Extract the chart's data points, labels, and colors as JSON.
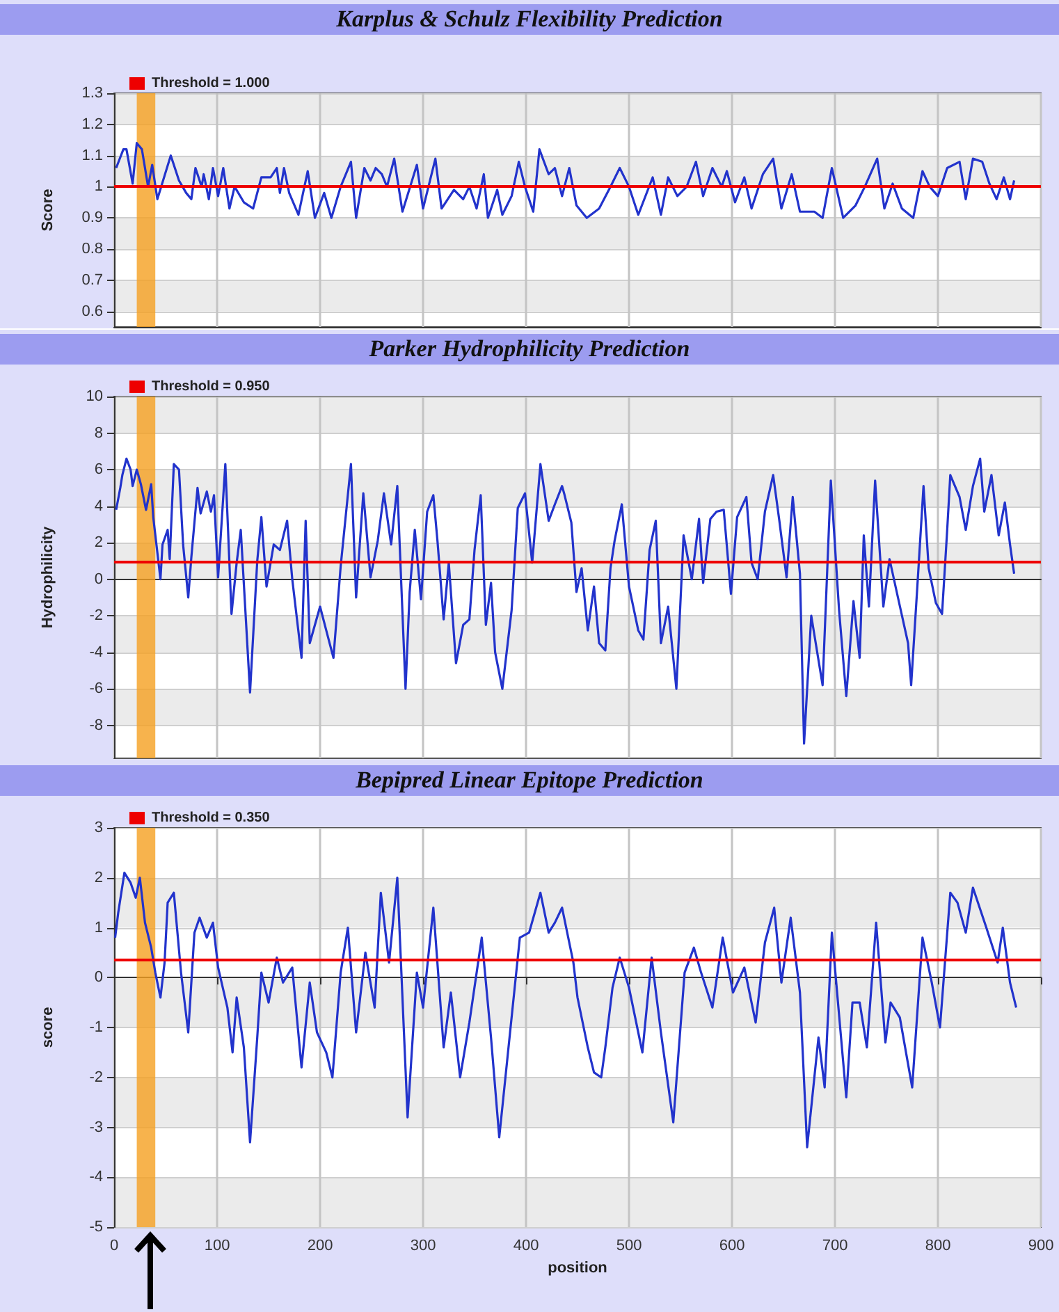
{
  "chart_data": [
    {
      "type": "line",
      "title": "Karplus & Schulz Flexibility Prediction",
      "ylabel": "Score",
      "xlim": [
        0,
        900
      ],
      "xticks": [
        0,
        100,
        200,
        300,
        400,
        500,
        600,
        700,
        800,
        900
      ],
      "ylim": [
        0.55,
        1.3
      ],
      "yticks": [
        0.6,
        0.7,
        0.8,
        0.9,
        1,
        1.1,
        1.2,
        1.3
      ],
      "grid": true,
      "legend": "top left",
      "tick_labels": "y",
      "x": [
        2,
        9,
        12,
        18,
        22,
        27,
        33,
        37,
        42,
        55,
        63,
        70,
        75,
        79,
        85,
        87,
        92,
        96,
        101,
        106,
        112,
        117,
        126,
        135,
        143,
        152,
        158,
        161,
        165,
        170,
        179,
        188,
        195,
        204,
        211,
        220,
        230,
        235,
        243,
        249,
        254,
        260,
        265,
        272,
        280,
        294,
        300,
        312,
        318,
        330,
        339,
        345,
        352,
        359,
        363,
        372,
        377,
        386,
        393,
        399,
        407,
        413,
        422,
        428,
        435,
        442,
        449,
        459,
        471,
        482,
        491,
        500,
        509,
        523,
        531,
        538,
        547,
        556,
        565,
        572,
        581,
        590,
        595,
        603,
        612,
        619,
        630,
        640,
        648,
        658,
        666,
        680,
        688,
        697,
        708,
        720,
        729,
        741,
        748,
        756,
        765,
        776,
        785,
        792,
        800,
        809,
        821,
        827,
        834,
        843,
        850,
        857,
        864,
        870,
        874
      ],
      "series": [
        {
          "color": "#2233cc",
          "values": [
            1.06,
            1.12,
            1.12,
            1.01,
            1.14,
            1.12,
            1.0,
            1.07,
            0.96,
            1.1,
            1.02,
            0.98,
            0.96,
            1.06,
            1.0,
            1.04,
            0.96,
            1.06,
            0.97,
            1.06,
            0.93,
            1.0,
            0.95,
            0.93,
            1.03,
            1.03,
            1.06,
            0.98,
            1.06,
            0.98,
            0.91,
            1.05,
            0.9,
            0.98,
            0.9,
            1.0,
            1.08,
            0.9,
            1.06,
            1.02,
            1.06,
            1.04,
            1.0,
            1.09,
            0.92,
            1.07,
            0.93,
            1.09,
            0.93,
            0.99,
            0.96,
            1.0,
            0.93,
            1.04,
            0.9,
            0.99,
            0.91,
            0.97,
            1.08,
            1.0,
            0.92,
            1.12,
            1.04,
            1.06,
            0.97,
            1.06,
            0.94,
            0.9,
            0.93,
            1.0,
            1.06,
            1.0,
            0.91,
            1.03,
            0.91,
            1.03,
            0.97,
            1.0,
            1.08,
            0.97,
            1.06,
            1.0,
            1.05,
            0.95,
            1.03,
            0.93,
            1.04,
            1.09,
            0.93,
            1.04,
            0.92,
            0.92,
            0.9,
            1.06,
            0.9,
            0.94,
            1.0,
            1.09,
            0.93,
            1.01,
            0.93,
            0.9,
            1.05,
            1.0,
            0.97,
            1.06,
            1.08,
            0.96,
            1.09,
            1.08,
            1.01,
            0.96,
            1.03,
            0.96,
            1.02
          ]
        }
      ],
      "ref_lines": [
        {
          "axis": "y",
          "value": 1.0,
          "label": "Threshold = 1.000",
          "color": "#ee0000"
        }
      ],
      "bands": [
        {
          "axis": "x",
          "from": 22,
          "to": 40,
          "color": "#f5a020"
        }
      ]
    },
    {
      "type": "line",
      "title": "Parker Hydrophilicity Prediction",
      "ylabel": "Hydrophilicity",
      "xlim": [
        0,
        900
      ],
      "xticks": [
        0,
        100,
        200,
        300,
        400,
        500,
        600,
        700,
        800,
        900
      ],
      "ylim": [
        -9.8,
        10
      ],
      "yticks": [
        -8,
        -6,
        -4,
        -2,
        0,
        2,
        4,
        6,
        8,
        10
      ],
      "grid": true,
      "legend": "top left",
      "tick_labels": "y",
      "x": [
        2,
        6,
        8,
        12,
        16,
        18,
        22,
        26,
        31,
        36,
        38,
        45,
        47,
        52,
        54,
        58,
        63,
        67,
        72,
        75,
        81,
        84,
        90,
        94,
        97,
        101,
        108,
        114,
        119,
        123,
        132,
        139,
        143,
        148,
        155,
        161,
        168,
        173,
        182,
        186,
        190,
        200,
        206,
        213,
        220,
        230,
        235,
        242,
        249,
        256,
        262,
        269,
        275,
        283,
        287,
        292,
        298,
        304,
        310,
        314,
        320,
        325,
        332,
        339,
        345,
        350,
        356,
        361,
        366,
        370,
        377,
        386,
        392,
        399,
        406,
        414,
        422,
        428,
        435,
        437,
        444,
        449,
        454,
        460,
        466,
        471,
        477,
        482,
        486,
        493,
        500,
        509,
        514,
        520,
        526,
        531,
        538,
        546,
        553,
        561,
        568,
        572,
        579,
        585,
        592,
        599,
        605,
        614,
        619,
        625,
        632,
        640,
        646,
        653,
        659,
        666,
        670,
        677,
        688,
        696,
        704,
        711,
        718,
        724,
        728,
        733,
        739,
        747,
        753,
        760,
        771,
        774,
        780,
        786,
        791,
        798,
        804,
        809,
        812,
        821,
        827,
        834,
        841,
        845,
        852,
        859,
        865,
        870,
        874
      ],
      "series": [
        {
          "color": "#2233cc",
          "values": [
            3.8,
            5.0,
            5.7,
            6.6,
            6.0,
            5.1,
            6.0,
            5.2,
            3.8,
            5.2,
            3.4,
            0,
            1.9,
            2.7,
            1.1,
            6.3,
            6.0,
            1.9,
            -1.0,
            1.2,
            5.0,
            3.6,
            4.8,
            3.7,
            4.6,
            0.1,
            6.3,
            -1.9,
            0.9,
            2.7,
            -6.2,
            1.0,
            3.4,
            -0.4,
            1.9,
            1.6,
            3.2,
            0,
            -4.3,
            3.2,
            -3.5,
            -1.5,
            -2.8,
            -4.3,
            0.7,
            6.3,
            -1.0,
            4.7,
            0.1,
            2.1,
            4.7,
            1.9,
            5.1,
            -6.0,
            -0.7,
            2.7,
            -1.1,
            3.7,
            4.6,
            2.1,
            -2.2,
            0.9,
            -4.6,
            -2.5,
            -2.2,
            1.6,
            4.6,
            -2.5,
            -0.2,
            -4.0,
            -6.0,
            -1.7,
            3.9,
            4.7,
            0.9,
            6.3,
            3.2,
            4.1,
            5.1,
            4.7,
            3.1,
            -0.7,
            0.6,
            -2.8,
            -0.4,
            -3.5,
            -3.9,
            0.6,
            2.1,
            4.1,
            -0.4,
            -2.8,
            -3.3,
            1.6,
            3.2,
            -3.5,
            -1.5,
            -6.0,
            2.4,
            0,
            3.3,
            -0.2,
            3.3,
            3.7,
            3.8,
            -0.8,
            3.4,
            4.5,
            0.9,
            0,
            3.7,
            5.7,
            3.2,
            0.1,
            4.5,
            0.3,
            -9.0,
            -2.0,
            -5.8,
            5.4,
            -1.7,
            -6.4,
            -1.2,
            -4.3,
            2.4,
            -1.5,
            5.4,
            -1.5,
            1.1,
            -0.7,
            -3.5,
            -5.8,
            -0.4,
            5.1,
            0.6,
            -1.3,
            -1.9,
            2.7,
            5.7,
            4.5,
            2.7,
            5.1,
            6.6,
            3.7,
            5.7,
            2.4,
            4.2,
            1.9,
            0.3
          ]
        }
      ],
      "ref_lines": [
        {
          "axis": "y",
          "value": 0.95,
          "label": "Threshold = 0.950",
          "color": "#ee0000"
        }
      ],
      "bands": [
        {
          "axis": "x",
          "from": 22,
          "to": 40,
          "color": "#f5a020"
        }
      ]
    },
    {
      "type": "line",
      "title": "Bepipred Linear Epitope Prediction",
      "xlabel": "position",
      "ylabel": "score",
      "xlim": [
        0,
        900
      ],
      "xticks": [
        0,
        100,
        200,
        300,
        400,
        500,
        600,
        700,
        800,
        900
      ],
      "ylim": [
        -5,
        3
      ],
      "yticks": [
        -5,
        -4,
        -3,
        -2,
        -1,
        0,
        1,
        2,
        3
      ],
      "grid": true,
      "legend": "top left",
      "x": [
        1,
        4,
        10,
        16,
        21,
        25,
        30,
        36,
        40,
        45,
        49,
        52,
        58,
        65,
        72,
        78,
        83,
        90,
        96,
        101,
        110,
        115,
        119,
        126,
        132,
        139,
        143,
        150,
        158,
        164,
        173,
        182,
        190,
        197,
        206,
        212,
        220,
        227,
        235,
        244,
        253,
        259,
        267,
        275,
        285,
        294,
        300,
        310,
        320,
        327,
        336,
        345,
        357,
        366,
        374,
        386,
        394,
        403,
        414,
        422,
        428,
        435,
        437,
        446,
        450,
        460,
        466,
        473,
        477,
        484,
        491,
        500,
        513,
        522,
        531,
        543,
        554,
        563,
        570,
        581,
        591,
        601,
        612,
        623,
        632,
        641,
        648,
        657,
        666,
        673,
        684,
        690,
        697,
        711,
        717,
        724,
        731,
        740,
        749,
        754,
        763,
        775,
        785,
        794,
        802,
        812,
        819,
        827,
        834,
        847,
        858,
        863,
        870,
        876
      ],
      "series": [
        {
          "color": "#2233cc",
          "values": [
            0.8,
            1.3,
            2.1,
            1.9,
            1.6,
            2.0,
            1.1,
            0.6,
            0.1,
            -0.4,
            0.3,
            1.5,
            1.7,
            0.1,
            -1.1,
            0.9,
            1.2,
            0.8,
            1.1,
            0.2,
            -0.6,
            -1.5,
            -0.4,
            -1.4,
            -3.3,
            -1.2,
            0.1,
            -0.5,
            0.4,
            -0.1,
            0.2,
            -1.8,
            -0.1,
            -1.1,
            -1.5,
            -2.0,
            0.1,
            1.0,
            -1.1,
            0.5,
            -0.6,
            1.7,
            0.3,
            2.0,
            -2.8,
            0.1,
            -0.6,
            1.4,
            -1.4,
            -0.3,
            -2.0,
            -0.9,
            0.8,
            -1.2,
            -3.2,
            -0.8,
            0.8,
            0.9,
            1.7,
            0.9,
            1.1,
            1.4,
            1.2,
            0.3,
            -0.4,
            -1.4,
            -1.9,
            -2.0,
            -1.4,
            -0.2,
            0.4,
            -0.2,
            -1.5,
            0.4,
            -1.1,
            -2.9,
            0.1,
            0.6,
            0.1,
            -0.6,
            0.8,
            -0.3,
            0.2,
            -0.9,
            0.7,
            1.4,
            -0.1,
            1.2,
            -0.3,
            -3.4,
            -1.2,
            -2.2,
            0.9,
            -2.4,
            -0.5,
            -0.5,
            -1.4,
            1.1,
            -1.3,
            -0.5,
            -0.8,
            -2.2,
            0.8,
            -0.1,
            -1.0,
            1.7,
            1.5,
            0.9,
            1.8,
            1.0,
            0.3,
            1.0,
            -0.1,
            -0.6
          ]
        }
      ],
      "ref_lines": [
        {
          "axis": "y",
          "value": 0.35,
          "label": "Threshold = 0.350",
          "color": "#ee0000"
        }
      ],
      "bands": [
        {
          "axis": "x",
          "from": 22,
          "to": 40,
          "color": "#f5a020"
        }
      ]
    }
  ]
}
